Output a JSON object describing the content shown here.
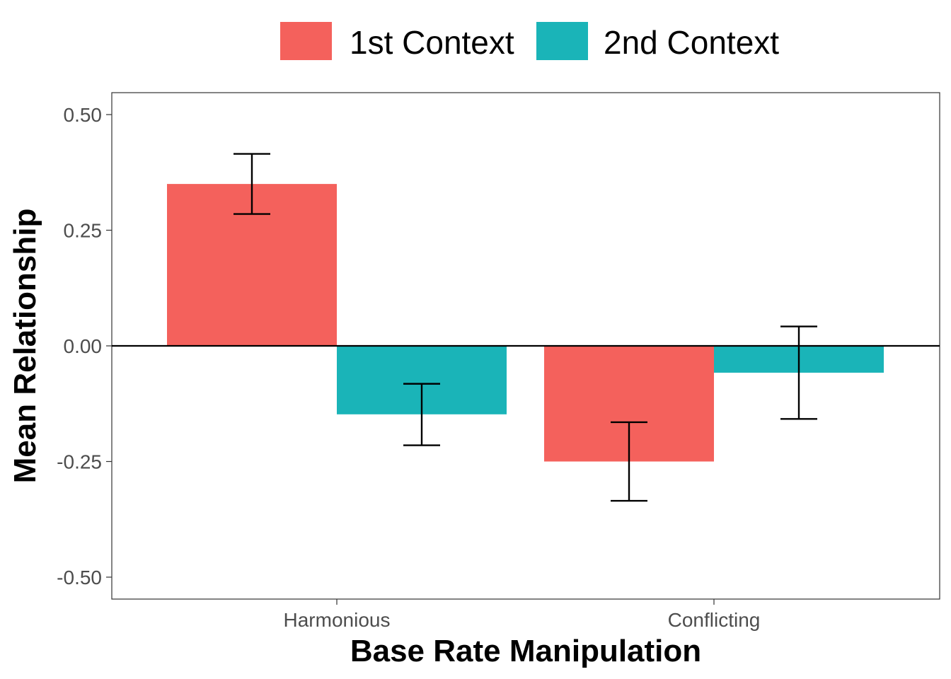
{
  "chart_data": {
    "type": "bar",
    "xlabel": "Base Rate Manipulation",
    "ylabel": "Mean Relationship",
    "categories": [
      "Harmonious",
      "Conflicting"
    ],
    "series": [
      {
        "name": "1st Context",
        "color": "#F4615C",
        "values": [
          0.35,
          -0.25
        ],
        "error_low": [
          0.285,
          -0.335
        ],
        "error_high": [
          0.415,
          -0.165
        ]
      },
      {
        "name": "2nd Context",
        "color": "#1AB4B8",
        "values": [
          -0.148,
          -0.058
        ],
        "error_low": [
          -0.215,
          -0.158
        ],
        "error_high": [
          -0.082,
          0.042
        ]
      }
    ],
    "ylim": [
      -0.55,
      0.55
    ],
    "yticks": [
      0.5,
      0.25,
      0.0,
      -0.25,
      -0.5
    ],
    "ytick_labels": [
      "0.50",
      "0.25",
      "0.00",
      "-0.25",
      "-0.50"
    ],
    "reference_line_y": 0,
    "legend_position": "top",
    "grid": false
  }
}
